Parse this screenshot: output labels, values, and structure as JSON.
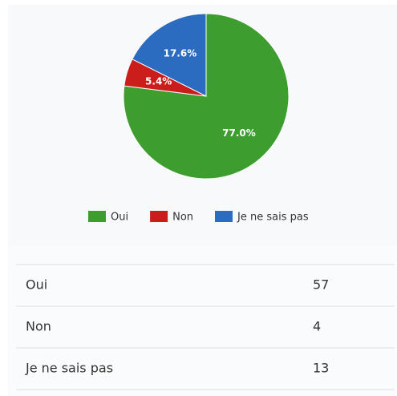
{
  "chart_data": {
    "type": "pie",
    "categories": [
      "Oui",
      "Non",
      "Je ne sais pas"
    ],
    "values": [
      77.0,
      5.4,
      17.6
    ],
    "value_labels": [
      "77.0%",
      "5.4%",
      "17.6%"
    ],
    "colors": [
      "#3d9e2f",
      "#cc1d1d",
      "#2b6cc0"
    ],
    "legend": "bottom"
  },
  "table": {
    "rows": [
      [
        "Oui",
        "57"
      ],
      [
        "Non",
        "4"
      ],
      [
        "Je ne sais pas",
        "13"
      ]
    ]
  }
}
